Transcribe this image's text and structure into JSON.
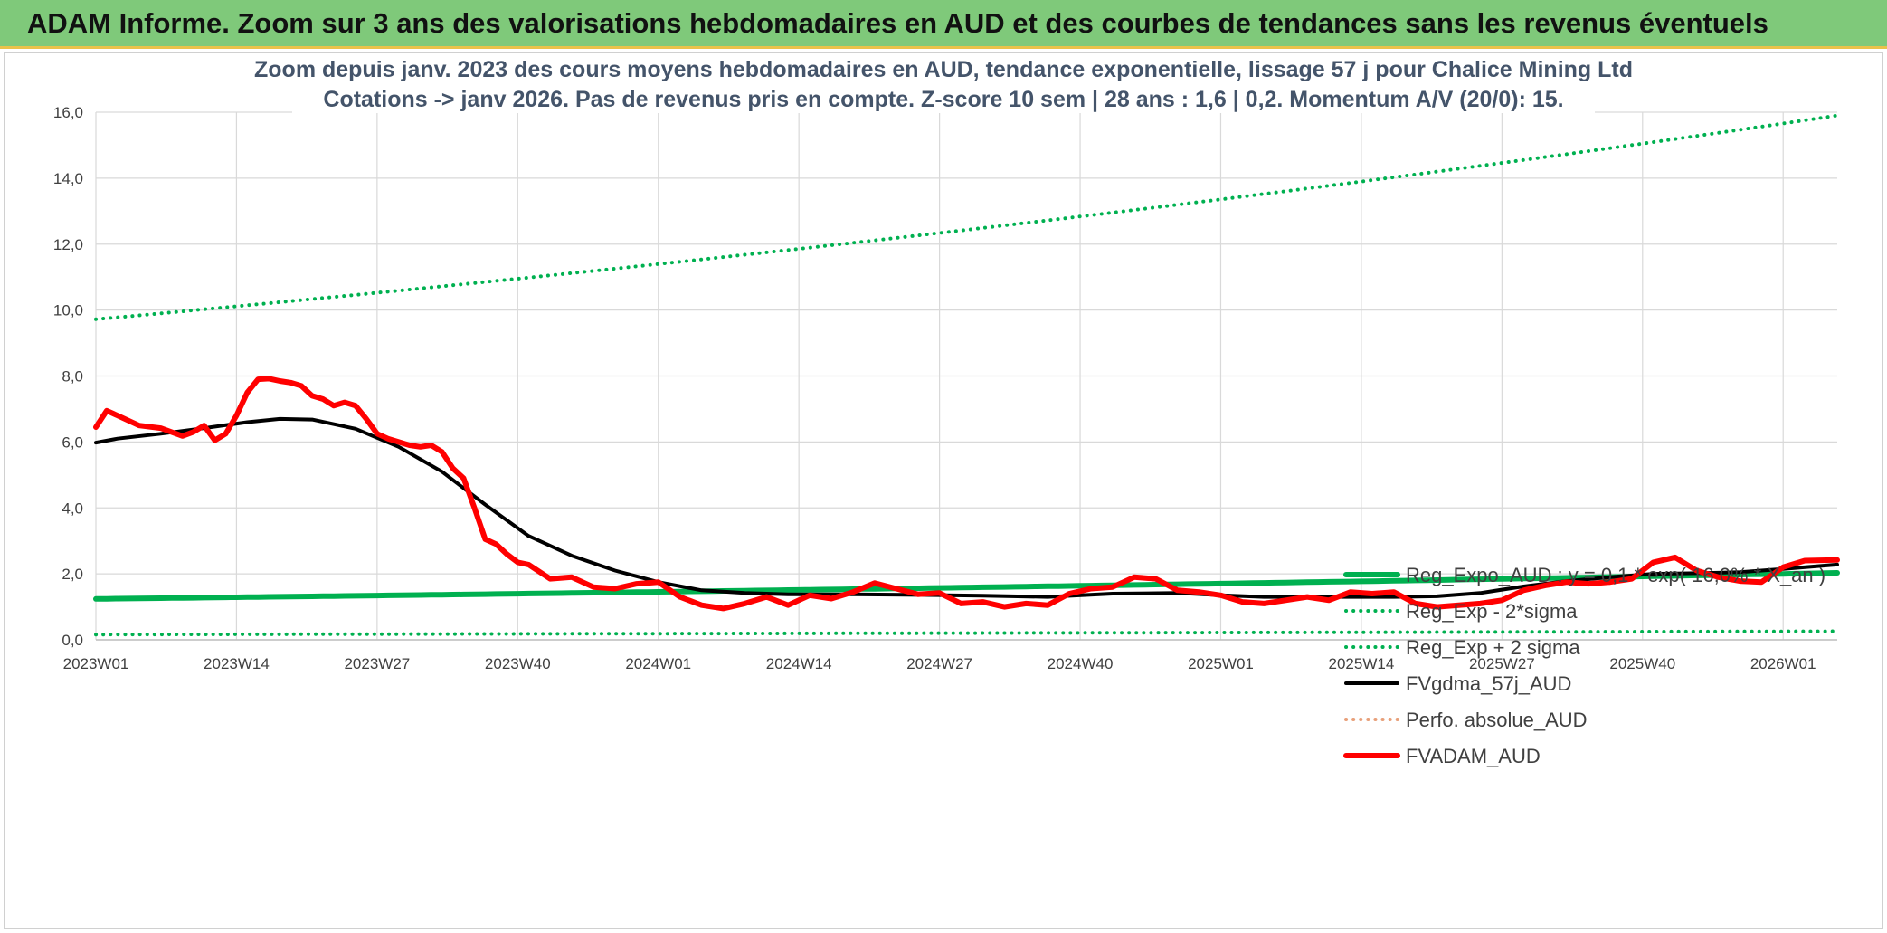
{
  "header": {
    "title": "ADAM Informe. Zoom sur 3 ans des valorisations hebdomadaires en AUD et des courbes de tendances sans les revenus éventuels"
  },
  "chart_data": {
    "type": "line",
    "title_lines": [
      "Zoom depuis janv. 2023 des cours moyens hebdomadaires en AUD, tendance exponentielle, lissage 57 j pour Chalice Mining Ltd",
      "Cotations -> janv 2026. Pas de revenus pris en compte. Z-score 10 sem | 28 ans : 1,6 | 0,2. Momentum A/V (20/0): 15."
    ],
    "x_tick_labels": [
      "2023W01",
      "2023W14",
      "2023W27",
      "2023W40",
      "2024W01",
      "2024W14",
      "2024W27",
      "2024W40",
      "2025W01",
      "2025W14",
      "2025W27",
      "2025W40",
      "2026W01"
    ],
    "x_range_weeks": [
      0,
      161
    ],
    "y_tick_labels": [
      "0,0",
      "2,0",
      "4,0",
      "6,0",
      "8,0",
      "10,0",
      "12,0",
      "14,0",
      "16,0"
    ],
    "ylim": [
      0,
      16
    ],
    "grid": true,
    "legend_position": "bottom-right",
    "series": [
      {
        "name": "Reg_Expo_AUD : y = 0,1 * exp( 16,0% *  X_an )",
        "style": "thick-solid",
        "color": "#00b050",
        "x": [
          0,
          161
        ],
        "y": [
          1.24,
          2.03
        ],
        "interp": "exp"
      },
      {
        "name": "Reg_Exp - 2*sigma",
        "style": "dotted",
        "color": "#00b050",
        "x": [
          0,
          161
        ],
        "y": [
          0.16,
          0.26
        ],
        "interp": "exp"
      },
      {
        "name": "Reg_Exp + 2 sigma",
        "style": "dotted",
        "color": "#00b050",
        "x": [
          0,
          161
        ],
        "y": [
          9.72,
          15.9
        ],
        "interp": "exp"
      },
      {
        "name": "FVgdma_57j_AUD",
        "style": "solid",
        "color": "#000000",
        "x": [
          0,
          2,
          6,
          10,
          14,
          17,
          20,
          24,
          28,
          32,
          36,
          40,
          44,
          48,
          52,
          56,
          60,
          64,
          70,
          76,
          82,
          88,
          94,
          100,
          104,
          108,
          112,
          116,
          120,
          124,
          128,
          132,
          136,
          140,
          144,
          148,
          152,
          156,
          161
        ],
        "y": [
          5.98,
          6.1,
          6.25,
          6.42,
          6.6,
          6.7,
          6.68,
          6.4,
          5.85,
          5.1,
          4.1,
          3.15,
          2.55,
          2.1,
          1.75,
          1.5,
          1.42,
          1.38,
          1.38,
          1.36,
          1.34,
          1.3,
          1.4,
          1.42,
          1.35,
          1.3,
          1.3,
          1.3,
          1.3,
          1.32,
          1.42,
          1.62,
          1.78,
          1.9,
          2.0,
          2.02,
          2.05,
          2.15,
          2.28
        ]
      },
      {
        "name": "Perfo. absolue_AUD",
        "style": "dotted",
        "color": "#e8a07a",
        "x": [],
        "y": []
      },
      {
        "name": "FVADAM_AUD",
        "style": "thick-solid",
        "color": "#ff0000",
        "x": [
          0,
          1,
          2,
          4,
          6,
          7,
          8,
          9,
          10,
          11,
          12,
          13,
          14,
          15,
          16,
          17,
          18,
          19,
          20,
          21,
          22,
          23,
          24,
          25,
          26,
          27,
          28,
          29,
          30,
          31,
          32,
          33,
          34,
          35,
          36,
          37,
          38,
          39,
          40,
          42,
          44,
          46,
          48,
          50,
          52,
          54,
          56,
          58,
          60,
          62,
          64,
          66,
          68,
          70,
          72,
          74,
          76,
          78,
          80,
          82,
          84,
          86,
          88,
          90,
          92,
          94,
          96,
          98,
          100,
          102,
          104,
          106,
          108,
          110,
          112,
          114,
          116,
          118,
          120,
          122,
          124,
          126,
          128,
          130,
          132,
          134,
          136,
          138,
          140,
          142,
          144,
          146,
          148,
          150,
          152,
          154,
          156,
          158,
          161
        ],
        "y": [
          6.45,
          6.95,
          6.8,
          6.5,
          6.42,
          6.3,
          6.18,
          6.3,
          6.5,
          6.05,
          6.25,
          6.8,
          7.5,
          7.9,
          7.92,
          7.85,
          7.8,
          7.7,
          7.4,
          7.3,
          7.1,
          7.2,
          7.1,
          6.7,
          6.25,
          6.1,
          6.0,
          5.9,
          5.85,
          5.9,
          5.7,
          5.2,
          4.9,
          4.0,
          3.05,
          2.9,
          2.6,
          2.35,
          2.28,
          1.85,
          1.9,
          1.6,
          1.55,
          1.7,
          1.75,
          1.3,
          1.05,
          0.95,
          1.1,
          1.3,
          1.05,
          1.35,
          1.25,
          1.45,
          1.72,
          1.55,
          1.38,
          1.42,
          1.1,
          1.15,
          1.0,
          1.1,
          1.05,
          1.4,
          1.55,
          1.6,
          1.9,
          1.85,
          1.5,
          1.45,
          1.35,
          1.15,
          1.1,
          1.2,
          1.3,
          1.2,
          1.45,
          1.4,
          1.45,
          1.1,
          1.0,
          1.05,
          1.1,
          1.2,
          1.5,
          1.65,
          1.75,
          1.7,
          1.75,
          1.85,
          2.35,
          2.5,
          2.1,
          1.9,
          1.78,
          1.75,
          2.2,
          2.4,
          2.42
        ]
      }
    ]
  }
}
